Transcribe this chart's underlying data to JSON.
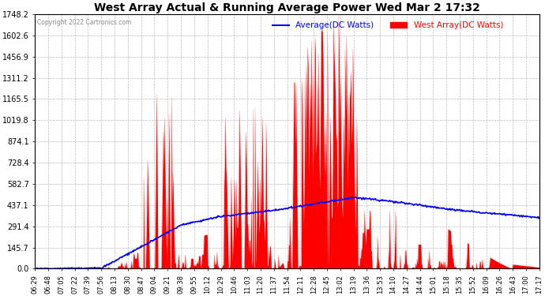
{
  "title": "West Array Actual & Running Average Power Wed Mar 2 17:32",
  "copyright": "Copyright 2022 Cartronics.com",
  "legend_avg": "Average(DC Watts)",
  "legend_west": "West Array(DC Watts)",
  "y_min": 0.0,
  "y_max": 1748.2,
  "y_ticks": [
    0.0,
    145.7,
    291.4,
    437.1,
    582.7,
    728.4,
    874.1,
    1019.8,
    1165.5,
    1311.2,
    1456.9,
    1602.6,
    1748.2
  ],
  "bg_color": "#ffffff",
  "plot_bg_color": "#ffffff",
  "title_color": "#000000",
  "grid_color": "#aaaaaa",
  "west_color": "#ff0000",
  "avg_color": "#0000ff",
  "x_label_color": "#000000",
  "y_label_color": "#000000",
  "x_tick_rotation": 90,
  "x_ticks": [
    "06:29",
    "06:48",
    "07:05",
    "07:22",
    "07:39",
    "07:56",
    "08:13",
    "08:30",
    "08:47",
    "09:04",
    "09:21",
    "09:38",
    "09:55",
    "10:12",
    "10:29",
    "10:46",
    "11:03",
    "11:20",
    "11:37",
    "11:54",
    "12:11",
    "12:28",
    "12:45",
    "13:02",
    "13:19",
    "13:36",
    "13:53",
    "14:10",
    "14:27",
    "14:44",
    "15:01",
    "15:18",
    "15:35",
    "15:52",
    "16:09",
    "16:26",
    "16:43",
    "17:00",
    "17:17"
  ]
}
